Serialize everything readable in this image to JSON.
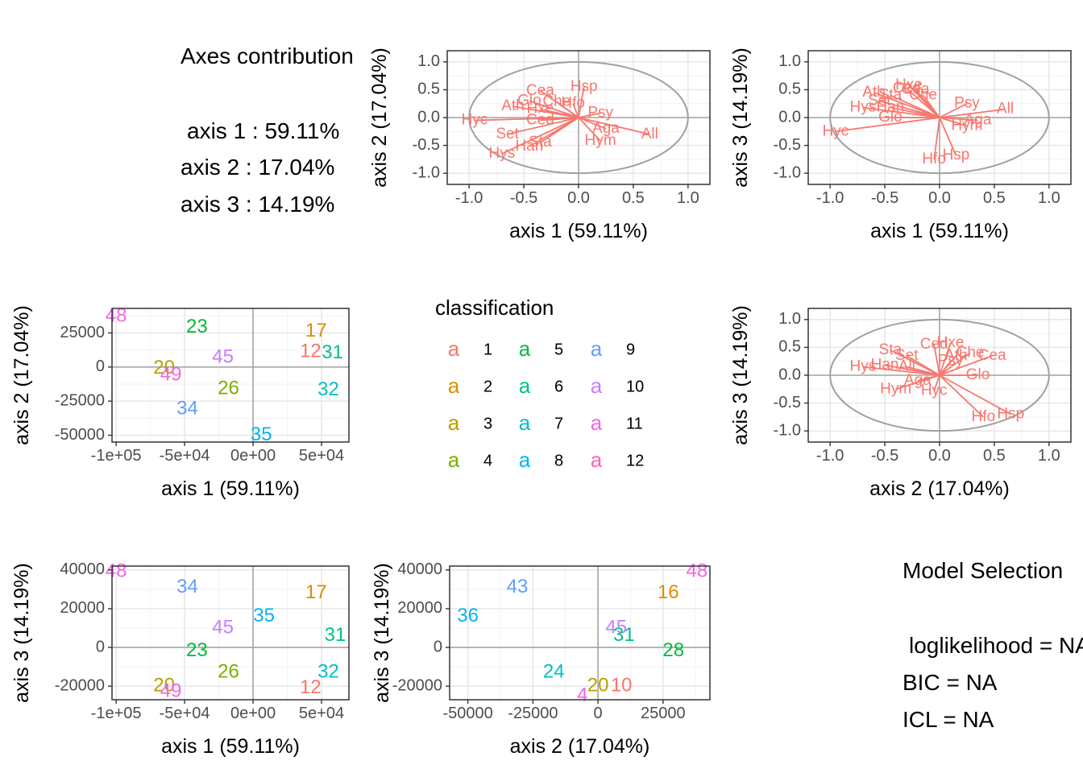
{
  "axes_contribution": {
    "title": "Axes contribution",
    "lines": [
      "axis 1 : 59.11%",
      "axis 2 : 17.04%",
      "axis 3 : 14.19%"
    ]
  },
  "model_selection": {
    "title": "Model Selection",
    "lines": [
      "loglikelihood = NA",
      "BIC = NA",
      "ICL = NA"
    ]
  },
  "colors": {
    "variable": "#F8766D",
    "circle": "#a0a0a0",
    "classes": [
      "#F8766D",
      "#DE8C00",
      "#B79F00",
      "#7CAE00",
      "#00BA38",
      "#00C08B",
      "#00BFC4",
      "#00B4F0",
      "#619CFF",
      "#C77CFF",
      "#F564E3",
      "#FF64B0"
    ]
  },
  "chart_data": [
    {
      "id": "corr12",
      "type": "correlation-circle",
      "xlabel": "axis 1 (59.11%)",
      "ylabel": "axis 2 (17.04%)",
      "xlim": [
        -1.2,
        1.2
      ],
      "ylim": [
        -1.2,
        1.2
      ],
      "xticks": [
        -1.0,
        -0.5,
        0.0,
        0.5,
        1.0
      ],
      "xtick_labels": [
        "-1.0",
        "-0.5",
        "0.0",
        "0.5",
        "1.0"
      ],
      "yticks": [
        -1.0,
        -0.5,
        0.0,
        0.5,
        1.0
      ],
      "ytick_labels": [
        "-1.0",
        "-0.5",
        "0.0",
        "0.5",
        "1.0"
      ],
      "variables": [
        {
          "name": "Hsp",
          "x": 0.05,
          "y": 0.55
        },
        {
          "name": "Cea",
          "x": -0.35,
          "y": 0.48
        },
        {
          "name": "Glo",
          "x": -0.45,
          "y": 0.3
        },
        {
          "name": "Che",
          "x": -0.2,
          "y": 0.28
        },
        {
          "name": "Hfo",
          "x": -0.05,
          "y": 0.25
        },
        {
          "name": "Ath",
          "x": -0.6,
          "y": 0.2
        },
        {
          "name": "Hxe",
          "x": -0.35,
          "y": 0.15
        },
        {
          "name": "Psy",
          "x": 0.2,
          "y": 0.08
        },
        {
          "name": "Hyc",
          "x": -0.95,
          "y": -0.05
        },
        {
          "name": "Ced",
          "x": -0.35,
          "y": -0.05
        },
        {
          "name": "Aga",
          "x": 0.25,
          "y": -0.2
        },
        {
          "name": "All",
          "x": 0.65,
          "y": -0.3
        },
        {
          "name": "Set",
          "x": -0.65,
          "y": -0.3
        },
        {
          "name": "Sta",
          "x": -0.35,
          "y": -0.45
        },
        {
          "name": "Hym",
          "x": 0.2,
          "y": -0.42
        },
        {
          "name": "Han",
          "x": -0.45,
          "y": -0.52
        },
        {
          "name": "Hys",
          "x": -0.7,
          "y": -0.65
        }
      ]
    },
    {
      "id": "corr13",
      "type": "correlation-circle",
      "xlabel": "axis 1 (59.11%)",
      "ylabel": "axis 3 (14.19%)",
      "xlim": [
        -1.2,
        1.2
      ],
      "ylim": [
        -1.2,
        1.2
      ],
      "xticks": [
        -1.0,
        -0.5,
        0.0,
        0.5,
        1.0
      ],
      "xtick_labels": [
        "-1.0",
        "-0.5",
        "0.0",
        "0.5",
        "1.0"
      ],
      "yticks": [
        -1.0,
        -0.5,
        0.0,
        0.5,
        1.0
      ],
      "ytick_labels": [
        "-1.0",
        "-0.5",
        "0.0",
        "0.5",
        "1.0"
      ],
      "variables": [
        {
          "name": "Hxe",
          "x": -0.28,
          "y": 0.58
        },
        {
          "name": "Ced",
          "x": -0.3,
          "y": 0.52
        },
        {
          "name": "Cea",
          "x": -0.22,
          "y": 0.5
        },
        {
          "name": "Ath",
          "x": -0.6,
          "y": 0.45
        },
        {
          "name": "Sta",
          "x": -0.45,
          "y": 0.4
        },
        {
          "name": "Che",
          "x": -0.15,
          "y": 0.4
        },
        {
          "name": "Set",
          "x": -0.55,
          "y": 0.3
        },
        {
          "name": "Psy",
          "x": 0.25,
          "y": 0.25
        },
        {
          "name": "All",
          "x": 0.6,
          "y": 0.15
        },
        {
          "name": "Hys",
          "x": -0.7,
          "y": 0.18
        },
        {
          "name": "Han",
          "x": -0.45,
          "y": 0.18
        },
        {
          "name": "Glo",
          "x": -0.45,
          "y": 0.0
        },
        {
          "name": "Aga",
          "x": 0.35,
          "y": -0.05
        },
        {
          "name": "Hym",
          "x": 0.25,
          "y": -0.15
        },
        {
          "name": "Hyc",
          "x": -0.95,
          "y": -0.25
        },
        {
          "name": "Hsp",
          "x": 0.15,
          "y": -0.68
        },
        {
          "name": "Hfo",
          "x": -0.05,
          "y": -0.75
        }
      ]
    },
    {
      "id": "corr23",
      "type": "correlation-circle",
      "xlabel": "axis 2 (17.04%)",
      "ylabel": "axis 3 (14.19%)",
      "xlim": [
        -1.2,
        1.2
      ],
      "ylim": [
        -1.2,
        1.2
      ],
      "xticks": [
        -1.0,
        -0.5,
        0.0,
        0.5,
        1.0
      ],
      "xtick_labels": [
        "-1.0",
        "-0.5",
        "0.0",
        "0.5",
        "1.0"
      ],
      "yticks": [
        -1.0,
        -0.5,
        0.0,
        0.5,
        1.0
      ],
      "ytick_labels": [
        "-1.0",
        "-0.5",
        "0.0",
        "0.5",
        "1.0"
      ],
      "variables": [
        {
          "name": "Hxe",
          "x": 0.1,
          "y": 0.58
        },
        {
          "name": "Ced",
          "x": -0.05,
          "y": 0.55
        },
        {
          "name": "Sta",
          "x": -0.45,
          "y": 0.45
        },
        {
          "name": "Cea",
          "x": 0.48,
          "y": 0.35
        },
        {
          "name": "Che",
          "x": 0.28,
          "y": 0.4
        },
        {
          "name": "Set",
          "x": -0.3,
          "y": 0.35
        },
        {
          "name": "Ath",
          "x": 0.15,
          "y": 0.35
        },
        {
          "name": "Psy",
          "x": 0.1,
          "y": 0.25
        },
        {
          "name": "All",
          "x": -0.3,
          "y": 0.15
        },
        {
          "name": "Han",
          "x": -0.5,
          "y": 0.18
        },
        {
          "name": "Hys",
          "x": -0.7,
          "y": 0.15
        },
        {
          "name": "Glo",
          "x": 0.35,
          "y": 0.0
        },
        {
          "name": "Aga",
          "x": -0.2,
          "y": -0.1
        },
        {
          "name": "Hym",
          "x": -0.4,
          "y": -0.25
        },
        {
          "name": "Hyc",
          "x": -0.05,
          "y": -0.28
        },
        {
          "name": "Hsp",
          "x": 0.65,
          "y": -0.7
        },
        {
          "name": "Hfo",
          "x": 0.4,
          "y": -0.75
        }
      ]
    },
    {
      "id": "ind12",
      "type": "scatter",
      "xlabel": "axis 1 (59.11%)",
      "ylabel": "axis 2 (17.04%)",
      "xlim": [
        -103000,
        70000
      ],
      "ylim": [
        -55000,
        43000
      ],
      "xticks": [
        -100000,
        -50000,
        0,
        50000
      ],
      "xtick_labels": [
        "-1e+05",
        "-5e+04",
        "0e+00",
        "5e+04"
      ],
      "yticks": [
        -50000,
        -25000,
        0,
        25000
      ],
      "ytick_labels": [
        "-50000",
        "-25000",
        "0",
        "25000"
      ],
      "points": [
        {
          "label": "48",
          "x": -100000,
          "y": 37000,
          "class": 11
        },
        {
          "label": "23",
          "x": -41000,
          "y": 29000,
          "class": 5
        },
        {
          "label": "17",
          "x": 46000,
          "y": 26000,
          "class": 2
        },
        {
          "label": "45",
          "x": -22000,
          "y": 7000,
          "class": 10
        },
        {
          "label": "31",
          "x": 58000,
          "y": 10000,
          "class": 6
        },
        {
          "label": "20",
          "x": -65000,
          "y": -1000,
          "class": 3
        },
        {
          "label": "49",
          "x": -60000,
          "y": -6000,
          "class": 11
        },
        {
          "label": "12",
          "x": 42000,
          "y": 11000,
          "class": 1
        },
        {
          "label": "26",
          "x": -18000,
          "y": -16000,
          "class": 4
        },
        {
          "label": "32",
          "x": 55000,
          "y": -17000,
          "class": 7
        },
        {
          "label": "34",
          "x": -48000,
          "y": -31000,
          "class": 9
        },
        {
          "label": "35",
          "x": 6000,
          "y": -50000,
          "class": 8
        }
      ]
    },
    {
      "id": "ind13",
      "type": "scatter",
      "xlabel": "axis 1 (59.11%)",
      "ylabel": "axis 3 (14.19%)",
      "xlim": [
        -103000,
        70000
      ],
      "ylim": [
        -27000,
        42000
      ],
      "xticks": [
        -100000,
        -50000,
        0,
        50000
      ],
      "xtick_labels": [
        "-1e+05",
        "-5e+04",
        "0e+00",
        "5e+04"
      ],
      "yticks": [
        -20000,
        0,
        20000,
        40000
      ],
      "ytick_labels": [
        "-20000",
        "0",
        "20000",
        "40000"
      ],
      "points": [
        {
          "label": "48",
          "x": -100000,
          "y": 39000,
          "class": 11
        },
        {
          "label": "34",
          "x": -48000,
          "y": 31000,
          "class": 9
        },
        {
          "label": "17",
          "x": 46000,
          "y": 28000,
          "class": 2
        },
        {
          "label": "35",
          "x": 8000,
          "y": 16000,
          "class": 8
        },
        {
          "label": "45",
          "x": -22000,
          "y": 10000,
          "class": 10
        },
        {
          "label": "31",
          "x": 60000,
          "y": 6000,
          "class": 6
        },
        {
          "label": "23",
          "x": -41000,
          "y": -2000,
          "class": 5
        },
        {
          "label": "26",
          "x": -18000,
          "y": -13000,
          "class": 4
        },
        {
          "label": "32",
          "x": 55000,
          "y": -13000,
          "class": 7
        },
        {
          "label": "20",
          "x": -65000,
          "y": -20000,
          "class": 3
        },
        {
          "label": "49",
          "x": -60000,
          "y": -23000,
          "class": 11
        },
        {
          "label": "12",
          "x": 42000,
          "y": -21000,
          "class": 1
        }
      ]
    },
    {
      "id": "ind23",
      "type": "scatter",
      "xlabel": "axis 2 (17.04%)",
      "ylabel": "axis 3 (14.19%)",
      "xlim": [
        -57000,
        43000
      ],
      "ylim": [
        -27000,
        42000
      ],
      "xticks": [
        -50000,
        -25000,
        0,
        25000
      ],
      "xtick_labels": [
        "-50000",
        "-25000",
        "0",
        "25000"
      ],
      "yticks": [
        -20000,
        0,
        20000,
        40000
      ],
      "ytick_labels": [
        "-20000",
        "0",
        "20000",
        "40000"
      ],
      "points": [
        {
          "label": "48",
          "x": 38000,
          "y": 39000,
          "class": 11
        },
        {
          "label": "43",
          "x": -31000,
          "y": 31000,
          "class": 9
        },
        {
          "label": "16",
          "x": 27000,
          "y": 28000,
          "class": 2
        },
        {
          "label": "36",
          "x": -50000,
          "y": 16000,
          "class": 8
        },
        {
          "label": "45",
          "x": 7000,
          "y": 10000,
          "class": 10
        },
        {
          "label": "31",
          "x": 10000,
          "y": 6000,
          "class": 6
        },
        {
          "label": "28",
          "x": 29000,
          "y": -2000,
          "class": 5
        },
        {
          "label": "24",
          "x": -17000,
          "y": -13000,
          "class": 7
        },
        {
          "label": "4",
          "x": -6000,
          "y": -25000,
          "class": 11
        },
        {
          "label": "20",
          "x": 0,
          "y": -20000,
          "class": 3
        },
        {
          "label": "10",
          "x": 9000,
          "y": -20000,
          "class": 1
        }
      ]
    }
  ],
  "legend": {
    "title": "classification",
    "key_glyph": "a",
    "items": [
      "1",
      "2",
      "3",
      "4",
      "5",
      "6",
      "7",
      "8",
      "9",
      "10",
      "11",
      "12"
    ]
  }
}
